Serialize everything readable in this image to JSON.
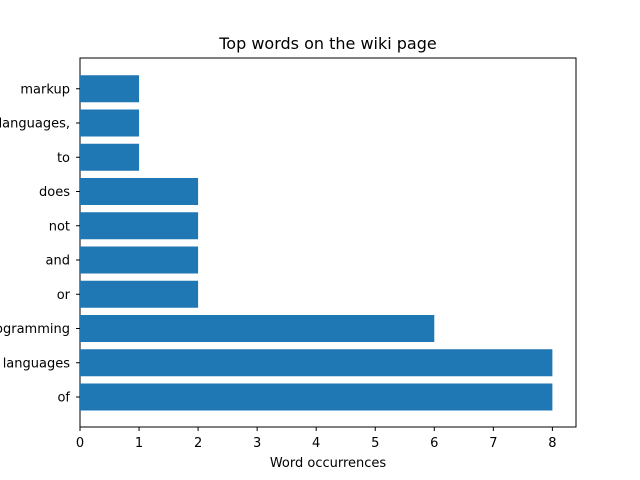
{
  "chart_data": {
    "type": "bar",
    "orientation": "horizontal",
    "title": "Top words on the wiki page",
    "xlabel": "Word occurrences",
    "ylabel": "",
    "categories": [
      "of",
      "languages",
      "programming",
      "or",
      "and",
      "not",
      "does",
      "to",
      "languages,",
      "markup"
    ],
    "values": [
      8,
      8,
      6,
      2,
      2,
      2,
      2,
      1,
      1,
      1
    ],
    "xlim": [
      0,
      8.4
    ],
    "xticks": [
      0,
      1,
      2,
      3,
      4,
      5,
      6,
      7,
      8
    ],
    "grid": false,
    "legend": "none",
    "bar_color": "#1f77b4"
  }
}
